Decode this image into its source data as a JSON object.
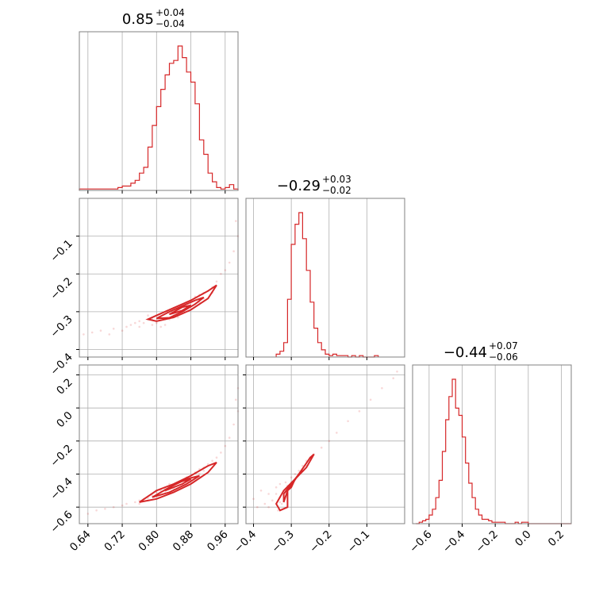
{
  "colors": {
    "series": "#d62728",
    "grid": "#b0b0b0",
    "frame": "#808080"
  },
  "chart_data": {
    "type": "corner",
    "grid": true,
    "parameters": [
      {
        "id": "p0",
        "range": [
          0.62,
          0.99
        ],
        "ticks": [
          0.64,
          0.72,
          0.8,
          0.88,
          0.96
        ],
        "tick_labels": [
          "0.64",
          "0.72",
          "0.80",
          "0.88",
          "0.96"
        ],
        "title": {
          "median": "0.85",
          "plus": "+0.04",
          "minus": "−0.04"
        }
      },
      {
        "id": "p1",
        "range": [
          -0.42,
          0.0
        ],
        "ticks": [
          -0.4,
          -0.3,
          -0.2,
          -0.1
        ],
        "tick_labels": [
          "−0.4",
          "−0.3",
          "−0.2",
          "−0.1"
        ],
        "title": {
          "median": "−0.29",
          "plus": "+0.03",
          "minus": "−0.02"
        }
      },
      {
        "id": "p2",
        "range": [
          -0.7,
          0.26
        ],
        "ticks": [
          -0.6,
          -0.4,
          -0.2,
          0.0,
          0.2
        ],
        "tick_labels": [
          "−0.6",
          "−0.4",
          "−0.2",
          "0.0",
          "0.2"
        ],
        "title": {
          "median": "−0.44",
          "plus": "+0.07",
          "minus": "−0.06"
        }
      }
    ],
    "histograms": [
      {
        "param": "p0",
        "bin_edges": [
          0.62,
          0.63,
          0.64,
          0.65,
          0.66,
          0.67,
          0.68,
          0.69,
          0.7,
          0.71,
          0.72,
          0.73,
          0.74,
          0.75,
          0.76,
          0.77,
          0.78,
          0.79,
          0.8,
          0.81,
          0.82,
          0.83,
          0.84,
          0.85,
          0.86,
          0.87,
          0.88,
          0.89,
          0.9,
          0.91,
          0.92,
          0.93,
          0.94,
          0.95,
          0.96,
          0.97,
          0.98,
          0.99
        ],
        "counts": [
          1,
          1,
          1,
          1,
          1,
          1,
          1,
          1,
          1,
          2,
          3,
          3,
          5,
          7,
          12,
          16,
          30,
          45,
          58,
          70,
          80,
          88,
          90,
          100,
          92,
          82,
          75,
          60,
          35,
          25,
          12,
          6,
          2,
          1,
          2,
          4,
          1
        ],
        "max": 100
      },
      {
        "param": "p1",
        "bin_edges": [
          -0.34,
          -0.33,
          -0.32,
          -0.31,
          -0.3,
          -0.29,
          -0.28,
          -0.27,
          -0.26,
          -0.25,
          -0.24,
          -0.23,
          -0.22,
          -0.21,
          -0.2,
          -0.19,
          -0.18,
          -0.17,
          -0.16,
          -0.15,
          -0.14,
          -0.13,
          -0.12,
          -0.11,
          -0.1,
          -0.09,
          -0.08,
          -0.07
        ],
        "counts": [
          2,
          4,
          10,
          40,
          78,
          92,
          100,
          82,
          60,
          38,
          20,
          10,
          5,
          2,
          1,
          2,
          1,
          1,
          1,
          0,
          1,
          0,
          1,
          0,
          0,
          0,
          1
        ],
        "max": 100
      },
      {
        "param": "p2",
        "bin_edges": [
          -0.68,
          -0.66,
          -0.64,
          -0.62,
          -0.6,
          -0.58,
          -0.56,
          -0.54,
          -0.52,
          -0.5,
          -0.48,
          -0.46,
          -0.44,
          -0.42,
          -0.4,
          -0.38,
          -0.36,
          -0.34,
          -0.32,
          -0.3,
          -0.28,
          -0.26,
          -0.24,
          -0.22,
          -0.2,
          -0.18,
          -0.16,
          -0.14,
          -0.12,
          -0.1,
          -0.08,
          -0.06,
          -0.04,
          -0.02,
          0.0,
          0.02,
          0.04,
          0.06,
          0.08,
          0.1,
          0.12,
          0.14,
          0.16,
          0.18,
          0.2,
          0.22,
          0.24,
          0.26
        ],
        "counts": [
          0,
          1,
          2,
          3,
          6,
          10,
          18,
          30,
          50,
          72,
          88,
          100,
          80,
          75,
          60,
          42,
          28,
          18,
          10,
          6,
          3,
          3,
          2,
          1,
          1,
          1,
          1,
          0,
          0,
          0,
          1,
          0,
          1,
          1,
          0,
          0,
          0,
          0,
          0,
          0,
          0,
          0,
          0,
          0,
          0,
          0,
          0
        ],
        "max": 100
      }
    ],
    "scatter_panels": [
      {
        "x": "p0",
        "y": "p1",
        "points": [
          [
            0.63,
            -0.36
          ],
          [
            0.65,
            -0.355
          ],
          [
            0.67,
            -0.35
          ],
          [
            0.69,
            -0.36
          ],
          [
            0.7,
            -0.345
          ],
          [
            0.72,
            -0.35
          ],
          [
            0.73,
            -0.34
          ],
          [
            0.74,
            -0.335
          ],
          [
            0.75,
            -0.33
          ],
          [
            0.76,
            -0.325
          ],
          [
            0.77,
            -0.33
          ],
          [
            0.78,
            -0.32
          ],
          [
            0.79,
            -0.335
          ],
          [
            0.8,
            -0.31
          ],
          [
            0.81,
            -0.34
          ],
          [
            0.82,
            -0.32
          ],
          [
            0.83,
            -0.305
          ],
          [
            0.84,
            -0.29
          ],
          [
            0.85,
            -0.3
          ],
          [
            0.86,
            -0.285
          ],
          [
            0.87,
            -0.29
          ],
          [
            0.88,
            -0.27
          ],
          [
            0.89,
            -0.26
          ],
          [
            0.9,
            -0.255
          ],
          [
            0.91,
            -0.25
          ],
          [
            0.92,
            -0.245
          ],
          [
            0.93,
            -0.235
          ],
          [
            0.94,
            -0.22
          ],
          [
            0.95,
            -0.2
          ],
          [
            0.96,
            -0.19
          ],
          [
            0.97,
            -0.17
          ],
          [
            0.98,
            -0.14
          ],
          [
            0.99,
            -0.1
          ],
          [
            0.985,
            -0.06
          ],
          [
            0.8,
            -0.33
          ],
          [
            0.82,
            -0.335
          ],
          [
            0.84,
            -0.31
          ],
          [
            0.86,
            -0.305
          ],
          [
            0.78,
            -0.31
          ],
          [
            0.76,
            -0.34
          ],
          [
            0.88,
            -0.285
          ],
          [
            0.9,
            -0.275
          ],
          [
            0.83,
            -0.32
          ],
          [
            0.87,
            -0.275
          ],
          [
            0.91,
            -0.265
          ],
          [
            0.81,
            -0.315
          ],
          [
            0.79,
            -0.32
          ],
          [
            0.85,
            -0.315
          ],
          [
            0.89,
            -0.28
          ],
          [
            0.93,
            -0.25
          ]
        ],
        "contours": [
          [
            [
              0.78,
              -0.32
            ],
            [
              0.8,
              -0.325
            ],
            [
              0.84,
              -0.315
            ],
            [
              0.88,
              -0.295
            ],
            [
              0.92,
              -0.265
            ],
            [
              0.94,
              -0.23
            ],
            [
              0.92,
              -0.245
            ],
            [
              0.88,
              -0.27
            ],
            [
              0.84,
              -0.29
            ],
            [
              0.8,
              -0.31
            ],
            [
              0.78,
              -0.32
            ]
          ],
          [
            [
              0.8,
              -0.318
            ],
            [
              0.83,
              -0.316
            ],
            [
              0.86,
              -0.3
            ],
            [
              0.89,
              -0.28
            ],
            [
              0.91,
              -0.262
            ],
            [
              0.89,
              -0.27
            ],
            [
              0.86,
              -0.285
            ],
            [
              0.83,
              -0.3
            ],
            [
              0.8,
              -0.318
            ]
          ],
          [
            [
              0.83,
              -0.307
            ],
            [
              0.86,
              -0.297
            ],
            [
              0.88,
              -0.283
            ],
            [
              0.86,
              -0.288
            ],
            [
              0.83,
              -0.307
            ]
          ]
        ]
      },
      {
        "x": "p0",
        "y": "p2",
        "points": [
          [
            0.64,
            -0.64
          ],
          [
            0.66,
            -0.62
          ],
          [
            0.68,
            -0.61
          ],
          [
            0.7,
            -0.6
          ],
          [
            0.72,
            -0.59
          ],
          [
            0.73,
            -0.58
          ],
          [
            0.75,
            -0.57
          ],
          [
            0.76,
            -0.56
          ],
          [
            0.77,
            -0.55
          ],
          [
            0.78,
            -0.545
          ],
          [
            0.79,
            -0.53
          ],
          [
            0.8,
            -0.51
          ],
          [
            0.81,
            -0.5
          ],
          [
            0.82,
            -0.49
          ],
          [
            0.83,
            -0.48
          ],
          [
            0.84,
            -0.47
          ],
          [
            0.85,
            -0.45
          ],
          [
            0.86,
            -0.44
          ],
          [
            0.87,
            -0.42
          ],
          [
            0.88,
            -0.41
          ],
          [
            0.89,
            -0.39
          ],
          [
            0.9,
            -0.37
          ],
          [
            0.91,
            -0.36
          ],
          [
            0.92,
            -0.34
          ],
          [
            0.93,
            -0.32
          ],
          [
            0.94,
            -0.3
          ],
          [
            0.95,
            -0.27
          ],
          [
            0.96,
            -0.23
          ],
          [
            0.97,
            -0.18
          ],
          [
            0.98,
            -0.1
          ],
          [
            0.99,
            -0.02
          ],
          [
            0.985,
            0.05
          ],
          [
            0.99,
            0.12
          ],
          [
            0.8,
            -0.53
          ],
          [
            0.82,
            -0.505
          ],
          [
            0.84,
            -0.485
          ],
          [
            0.86,
            -0.46
          ],
          [
            0.88,
            -0.43
          ],
          [
            0.9,
            -0.4
          ],
          [
            0.78,
            -0.56
          ],
          [
            0.76,
            -0.58
          ],
          [
            0.83,
            -0.46
          ],
          [
            0.87,
            -0.44
          ],
          [
            0.91,
            -0.38
          ]
        ],
        "contours": [
          [
            [
              0.76,
              -0.57
            ],
            [
              0.8,
              -0.55
            ],
            [
              0.84,
              -0.51
            ],
            [
              0.88,
              -0.46
            ],
            [
              0.92,
              -0.39
            ],
            [
              0.94,
              -0.33
            ],
            [
              0.92,
              -0.35
            ],
            [
              0.88,
              -0.41
            ],
            [
              0.84,
              -0.46
            ],
            [
              0.8,
              -0.5
            ],
            [
              0.76,
              -0.57
            ]
          ],
          [
            [
              0.79,
              -0.54
            ],
            [
              0.83,
              -0.51
            ],
            [
              0.87,
              -0.46
            ],
            [
              0.9,
              -0.41
            ],
            [
              0.87,
              -0.43
            ],
            [
              0.83,
              -0.48
            ],
            [
              0.79,
              -0.54
            ]
          ],
          [
            [
              0.82,
              -0.5
            ],
            [
              0.86,
              -0.46
            ],
            [
              0.88,
              -0.43
            ],
            [
              0.85,
              -0.45
            ],
            [
              0.82,
              -0.5
            ]
          ]
        ]
      },
      {
        "x": "p1",
        "y": "p2",
        "points": [
          [
            -0.4,
            -0.55
          ],
          [
            -0.39,
            -0.6
          ],
          [
            -0.38,
            -0.5
          ],
          [
            -0.37,
            -0.58
          ],
          [
            -0.36,
            -0.52
          ],
          [
            -0.35,
            -0.56
          ],
          [
            -0.34,
            -0.48
          ],
          [
            -0.335,
            -0.62
          ],
          [
            -0.33,
            -0.54
          ],
          [
            -0.325,
            -0.58
          ],
          [
            -0.32,
            -0.5
          ],
          [
            -0.315,
            -0.45
          ],
          [
            -0.31,
            -0.47
          ],
          [
            -0.3,
            -0.42
          ],
          [
            -0.29,
            -0.4
          ],
          [
            -0.28,
            -0.38
          ],
          [
            -0.27,
            -0.35
          ],
          [
            -0.26,
            -0.32
          ],
          [
            -0.25,
            -0.3
          ],
          [
            -0.24,
            -0.28
          ],
          [
            -0.22,
            -0.24
          ],
          [
            -0.2,
            -0.2
          ],
          [
            -0.18,
            -0.15
          ],
          [
            -0.15,
            -0.08
          ],
          [
            -0.12,
            -0.02
          ],
          [
            -0.09,
            0.05
          ],
          [
            -0.06,
            0.12
          ],
          [
            -0.03,
            0.18
          ],
          [
            -0.02,
            0.22
          ],
          [
            -0.33,
            -0.57
          ],
          [
            -0.32,
            -0.53
          ],
          [
            -0.31,
            -0.49
          ],
          [
            -0.3,
            -0.45
          ],
          [
            -0.29,
            -0.43
          ],
          [
            -0.34,
            -0.52
          ],
          [
            -0.36,
            -0.6
          ],
          [
            -0.28,
            -0.4
          ],
          [
            -0.26,
            -0.35
          ],
          [
            -0.31,
            -0.52
          ],
          [
            -0.33,
            -0.46
          ]
        ],
        "contours": [
          [
            [
              -0.33,
              -0.62
            ],
            [
              -0.34,
              -0.58
            ],
            [
              -0.32,
              -0.5
            ],
            [
              -0.29,
              -0.43
            ],
            [
              -0.26,
              -0.36
            ],
            [
              -0.24,
              -0.28
            ],
            [
              -0.25,
              -0.3
            ],
            [
              -0.28,
              -0.4
            ],
            [
              -0.31,
              -0.5
            ],
            [
              -0.31,
              -0.6
            ],
            [
              -0.33,
              -0.62
            ]
          ],
          [
            [
              -0.32,
              -0.57
            ],
            [
              -0.32,
              -0.52
            ],
            [
              -0.3,
              -0.46
            ],
            [
              -0.28,
              -0.4
            ],
            [
              -0.27,
              -0.38
            ],
            [
              -0.29,
              -0.43
            ],
            [
              -0.31,
              -0.5
            ],
            [
              -0.32,
              -0.57
            ]
          ],
          [
            [
              -0.31,
              -0.5
            ],
            [
              -0.3,
              -0.46
            ],
            [
              -0.29,
              -0.43
            ],
            [
              -0.3,
              -0.48
            ],
            [
              -0.31,
              -0.5
            ]
          ]
        ]
      }
    ]
  }
}
